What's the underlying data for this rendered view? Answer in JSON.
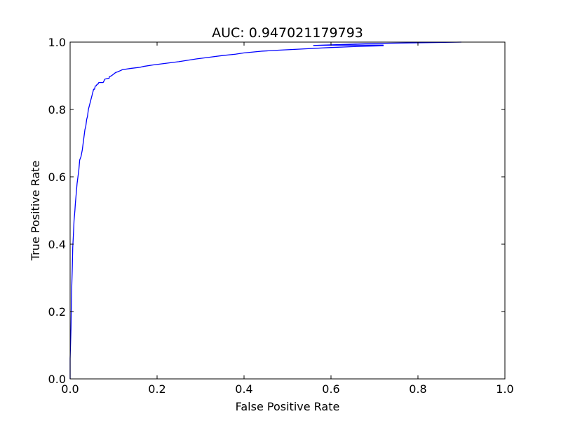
{
  "chart_data": {
    "type": "line",
    "title": "AUC: 0.947021179793",
    "xlabel": "False Positive Rate",
    "ylabel": "True Positive Rate",
    "xlim": [
      0.0,
      1.0
    ],
    "ylim": [
      0.0,
      1.0
    ],
    "x_ticks": [
      "0.0",
      "0.2",
      "0.4",
      "0.6",
      "0.8",
      "1.0"
    ],
    "y_ticks": [
      "0.0",
      "0.2",
      "0.4",
      "0.6",
      "0.8",
      "1.0"
    ],
    "grid": false,
    "legend": "none",
    "series": [
      {
        "color": "#0000ff",
        "x": [
          0.0,
          0.0,
          0.002,
          0.003,
          0.005,
          0.006,
          0.008,
          0.009,
          0.011,
          0.012,
          0.014,
          0.016,
          0.018,
          0.02,
          0.022,
          0.025,
          0.028,
          0.03,
          0.032,
          0.034,
          0.036,
          0.038,
          0.04,
          0.042,
          0.044,
          0.046,
          0.048,
          0.05,
          0.052,
          0.054,
          0.056,
          0.058,
          0.06,
          0.062,
          0.064,
          0.066,
          0.068,
          0.072,
          0.076,
          0.08,
          0.09,
          0.09,
          0.095,
          0.1,
          0.105,
          0.11,
          0.115,
          0.12,
          0.14,
          0.16,
          0.17,
          0.19,
          0.22,
          0.25,
          0.29,
          0.32,
          0.35,
          0.38,
          0.4,
          0.44,
          0.48,
          0.54,
          0.6,
          0.66,
          0.72,
          0.72,
          0.68,
          0.64,
          0.6,
          0.56,
          0.6,
          0.65,
          0.7,
          0.75,
          0.8,
          0.85,
          0.9
        ],
        "y": [
          0.0,
          0.06,
          0.15,
          0.24,
          0.33,
          0.39,
          0.44,
          0.47,
          0.5,
          0.52,
          0.55,
          0.58,
          0.6,
          0.62,
          0.65,
          0.66,
          0.68,
          0.7,
          0.72,
          0.74,
          0.75,
          0.77,
          0.78,
          0.8,
          0.81,
          0.82,
          0.83,
          0.84,
          0.85,
          0.86,
          0.86,
          0.87,
          0.87,
          0.875,
          0.875,
          0.88,
          0.88,
          0.88,
          0.88,
          0.89,
          0.893,
          0.897,
          0.9,
          0.905,
          0.91,
          0.912,
          0.915,
          0.918,
          0.922,
          0.925,
          0.928,
          0.932,
          0.937,
          0.942,
          0.95,
          0.955,
          0.96,
          0.964,
          0.968,
          0.973,
          0.976,
          0.98,
          0.984,
          0.987,
          0.989,
          0.991,
          0.991,
          0.991,
          0.991,
          0.99,
          0.992,
          0.994,
          0.996,
          0.997,
          0.998,
          0.999,
          1.0
        ]
      }
    ]
  }
}
